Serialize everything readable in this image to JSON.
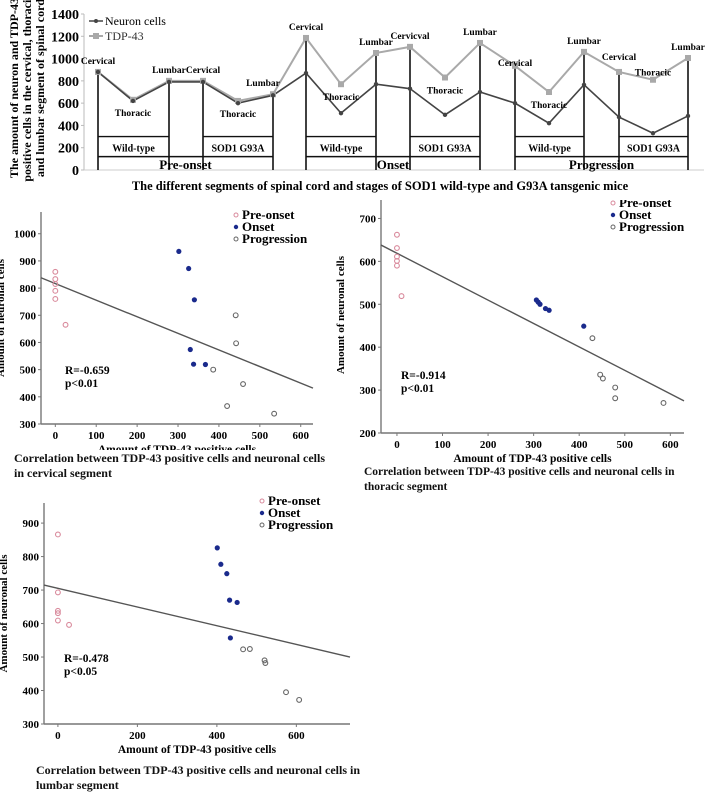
{
  "chart_data": [
    {
      "id": "line",
      "type": "line",
      "title": "",
      "xlabel": "The different segments of spinal cord and stages of SOD1 wild-type and G93A tansgenic mice",
      "ylabel_lines": [
        "The amount of neuron and TDP-43",
        "positive cells in the cervical, thoracic",
        "and lumbar segment of spinal cord"
      ],
      "ylim": [
        0,
        1400
      ],
      "yticks": [
        0,
        200,
        400,
        600,
        800,
        1000,
        1200,
        1400
      ],
      "legend": [
        "Neuron cells",
        "TDP-43"
      ],
      "legend_position": "top-left",
      "colors": {
        "neuron": "#444444",
        "tdp": "#a9a9a9"
      },
      "groups": [
        {
          "stage": "Pre-onset",
          "genotype": "Wild-type",
          "segments": [
            "Cervical",
            "Thoracic",
            "Lumbar"
          ],
          "neuron": [
            880,
            620,
            790
          ],
          "tdp": [
            880,
            630,
            800
          ]
        },
        {
          "stage": "Pre-onset",
          "genotype": "SOD1 G93A",
          "segments": [
            "Cervical",
            "Thoracic",
            "Lumbar"
          ],
          "neuron": [
            790,
            600,
            670
          ],
          "tdp": [
            800,
            620,
            680
          ]
        },
        {
          "stage": "Onset",
          "genotype": "Wild-type",
          "segments": [
            "Cervical",
            "Thoracic",
            "Lumbar"
          ],
          "neuron": [
            870,
            510,
            770
          ],
          "tdp": [
            1185,
            770,
            1050
          ]
        },
        {
          "stage": "Onset",
          "genotype": "SOD1 G93A",
          "segments": [
            "Cervicval",
            "Thoracic",
            "Lumbar"
          ],
          "neuron": [
            730,
            495,
            700
          ],
          "tdp": [
            1105,
            830,
            1140
          ]
        },
        {
          "stage": "Progression",
          "genotype": "Wild-type",
          "segments": [
            "Cervical",
            "Thoracic",
            "Lumbar"
          ],
          "neuron": [
            600,
            420,
            765
          ],
          "tdp": [
            935,
            700,
            1060
          ]
        },
        {
          "stage": "Progression",
          "genotype": "SOD1 G93A",
          "segments": [
            "Cervical",
            "Thoracic",
            "Lumbar"
          ],
          "neuron": [
            475,
            330,
            485
          ],
          "tdp": [
            880,
            810,
            1005
          ]
        }
      ],
      "stages": [
        "Pre-onset",
        "Onset",
        "Progression"
      ]
    },
    {
      "id": "cervical",
      "type": "scatter",
      "xlabel": "Amount of TDP-43 positive cells",
      "ylabel": "Amount of neuronal cells",
      "caption": [
        "Correlation between TDP-43 positive cells and neuronal cells",
        " in cervical segment"
      ],
      "xlim": [
        -35,
        630
      ],
      "ylim": [
        300,
        1080
      ],
      "xticks": [
        0,
        100,
        200,
        300,
        400,
        500,
        600
      ],
      "yticks": [
        300,
        400,
        500,
        600,
        700,
        800,
        900,
        1000
      ],
      "annotation": [
        "R=-0.659",
        "p<0.01"
      ],
      "fit": {
        "x": [
          -35,
          630
        ],
        "y": [
          838,
          432
        ]
      },
      "legend_position": "top-right",
      "series": [
        {
          "name": "Pre-onset",
          "style": "open",
          "color": "#d98a9c",
          "points": [
            [
              0,
              860
            ],
            [
              0,
              833
            ],
            [
              0,
              815
            ],
            [
              0,
              790
            ],
            [
              0,
              760
            ],
            [
              25,
              665
            ]
          ]
        },
        {
          "name": "Onset",
          "style": "filled",
          "color": "#1a2a8c",
          "points": [
            [
              302,
              935
            ],
            [
              326,
              872
            ],
            [
              340,
              757
            ],
            [
              330,
              574
            ],
            [
              338,
              520
            ],
            [
              367,
              519
            ]
          ]
        },
        {
          "name": "Progression",
          "style": "open",
          "color": "#666666",
          "points": [
            [
              441,
              700
            ],
            [
              442,
              597
            ],
            [
              386,
              500
            ],
            [
              459,
              447
            ],
            [
              420,
              366
            ],
            [
              535,
              338
            ]
          ]
        }
      ]
    },
    {
      "id": "thoracic",
      "type": "scatter",
      "xlabel": "Amount of TDP-43 positive cells",
      "ylabel": "Amount of neuronal cells",
      "caption": [
        "Correlation between TDP-43 positive cells and neuronal cells in",
        "thoracic segment"
      ],
      "xlim": [
        -35,
        630
      ],
      "ylim": [
        200,
        750
      ],
      "xticks": [
        0,
        100,
        200,
        300,
        400,
        500,
        600
      ],
      "yticks": [
        200,
        300,
        400,
        500,
        600,
        700
      ],
      "annotation": [
        "R=-0.914",
        "p<0.01"
      ],
      "fit": {
        "x": [
          -35,
          630
        ],
        "y": [
          638,
          275
        ]
      },
      "legend_position": "top-right",
      "series": [
        {
          "name": "Pre-onset",
          "style": "open",
          "color": "#d98a9c",
          "points": [
            [
              0,
              662
            ],
            [
              0,
              631
            ],
            [
              0,
              611
            ],
            [
              0,
              601
            ],
            [
              0,
              590
            ],
            [
              10,
              519
            ]
          ]
        },
        {
          "name": "Onset",
          "style": "filled",
          "color": "#1a2a8c",
          "points": [
            [
              306,
              510
            ],
            [
              310,
              505
            ],
            [
              314,
              500
            ],
            [
              326,
              490
            ],
            [
              334,
              486
            ],
            [
              410,
              449
            ]
          ]
        },
        {
          "name": "Progression",
          "style": "open",
          "color": "#666666",
          "points": [
            [
              429,
              421
            ],
            [
              446,
              336
            ],
            [
              452,
              327
            ],
            [
              479,
              306
            ],
            [
              479,
              281
            ],
            [
              585,
              270
            ]
          ]
        }
      ]
    },
    {
      "id": "lumbar",
      "type": "scatter",
      "xlabel": "Amount of TDP-43 positive cells",
      "ylabel": "Amount of neuronal cells",
      "caption": [
        "Correlation between TDP-43 positive cells and neuronal cells in",
        "lumbar segment"
      ],
      "xlim": [
        -35,
        735
      ],
      "ylim": [
        300,
        960
      ],
      "xticks": [
        0,
        200,
        400,
        600
      ],
      "yticks": [
        300,
        400,
        500,
        600,
        700,
        800,
        900
      ],
      "annotation": [
        "R=-0.478",
        "p<0.05"
      ],
      "fit": {
        "x": [
          -35,
          735
        ],
        "y": [
          715,
          500
        ]
      },
      "legend_position": "top-right",
      "series": [
        {
          "name": "Pre-onset",
          "style": "open",
          "color": "#d98a9c",
          "points": [
            [
              0,
              866
            ],
            [
              0,
              693
            ],
            [
              0,
              638
            ],
            [
              0,
              631
            ],
            [
              0,
              609
            ],
            [
              28,
              596
            ]
          ]
        },
        {
          "name": "Onset",
          "style": "filled",
          "color": "#1a2a8c",
          "points": [
            [
              401,
              826
            ],
            [
              410,
              777
            ],
            [
              425,
              749
            ],
            [
              432,
              670
            ],
            [
              451,
              663
            ],
            [
              434,
              557
            ]
          ]
        },
        {
          "name": "Progression",
          "style": "open",
          "color": "#666666",
          "points": [
            [
              466,
              523
            ],
            [
              483,
              524
            ],
            [
              520,
              490
            ],
            [
              522,
              482
            ],
            [
              574,
              395
            ],
            [
              607,
              372
            ]
          ]
        }
      ]
    }
  ]
}
